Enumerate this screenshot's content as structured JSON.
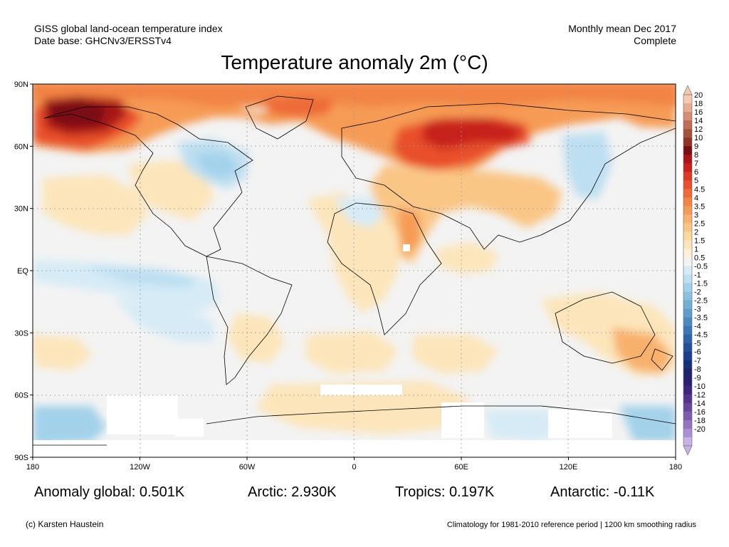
{
  "header": {
    "left_line1": "GISS global land-ocean temperature index",
    "left_line2": "Date base: GHCNv3/ERSSTv4",
    "right_line1": "Monthly mean Dec 2017",
    "right_line2": "Complete"
  },
  "title": "Temperature anomaly 2m (°C)",
  "axes": {
    "lat_labels": [
      "90N",
      "60N",
      "30N",
      "EQ",
      "30S",
      "60S",
      "90S"
    ],
    "lon_labels": [
      "180",
      "120W",
      "60W",
      "0",
      "60E",
      "120E",
      "180"
    ],
    "lat_values": [
      90,
      60,
      30,
      0,
      -30,
      -60,
      -90
    ],
    "lon_values": [
      -180,
      -120,
      -60,
      0,
      60,
      120,
      180
    ]
  },
  "colorbar": {
    "labels": [
      "20",
      "18",
      "16",
      "14",
      "12",
      "10",
      "9",
      "8",
      "7",
      "6",
      "5",
      "4.5",
      "4",
      "3.5",
      "3",
      "2.5",
      "2",
      "1.5",
      "1",
      "0.5",
      "-0.5",
      "-1",
      "-1.5",
      "-2",
      "-2.5",
      "-3",
      "-3.5",
      "-4",
      "-4.5",
      "-5",
      "-6",
      "-7",
      "-8",
      "-9",
      "-10",
      "-12",
      "-14",
      "-16",
      "-18",
      "-20"
    ],
    "colors": [
      "#f6c9b3",
      "#e8ab94",
      "#d78c74",
      "#c06c57",
      "#a8503e",
      "#8f3427",
      "#7a0f12",
      "#a81417",
      "#c8201c",
      "#dc3a22",
      "#e8502b",
      "#ee6a37",
      "#f28444",
      "#f69b55",
      "#f8b16c",
      "#fac686",
      "#fbd8a0",
      "#fce5ba",
      "#fdf0d6",
      "#f3f3f3",
      "#d6ebf6",
      "#bddff1",
      "#a3d1ea",
      "#89c1e1",
      "#72afd6",
      "#5c9dcb",
      "#4a8ac0",
      "#3b76b5",
      "#2e62a9",
      "#24509b",
      "#1d3e8c",
      "#17307c",
      "#1b236b",
      "#2b1f74",
      "#3d2780",
      "#51358f",
      "#67479e",
      "#7d5bae",
      "#9473c1",
      "#ad90d4",
      "#c7b1e5"
    ]
  },
  "stats": {
    "global": "Anomaly global: 0.501K",
    "arctic": "Arctic: 2.930K",
    "tropics": "Tropics: 0.197K",
    "antarctic": "Antarctic: -0.11K"
  },
  "footer": {
    "credit": "(c) Karsten Haustein",
    "climatology": "Climatology for 1981-2010 reference period | 1200 km smoothing radius"
  }
}
